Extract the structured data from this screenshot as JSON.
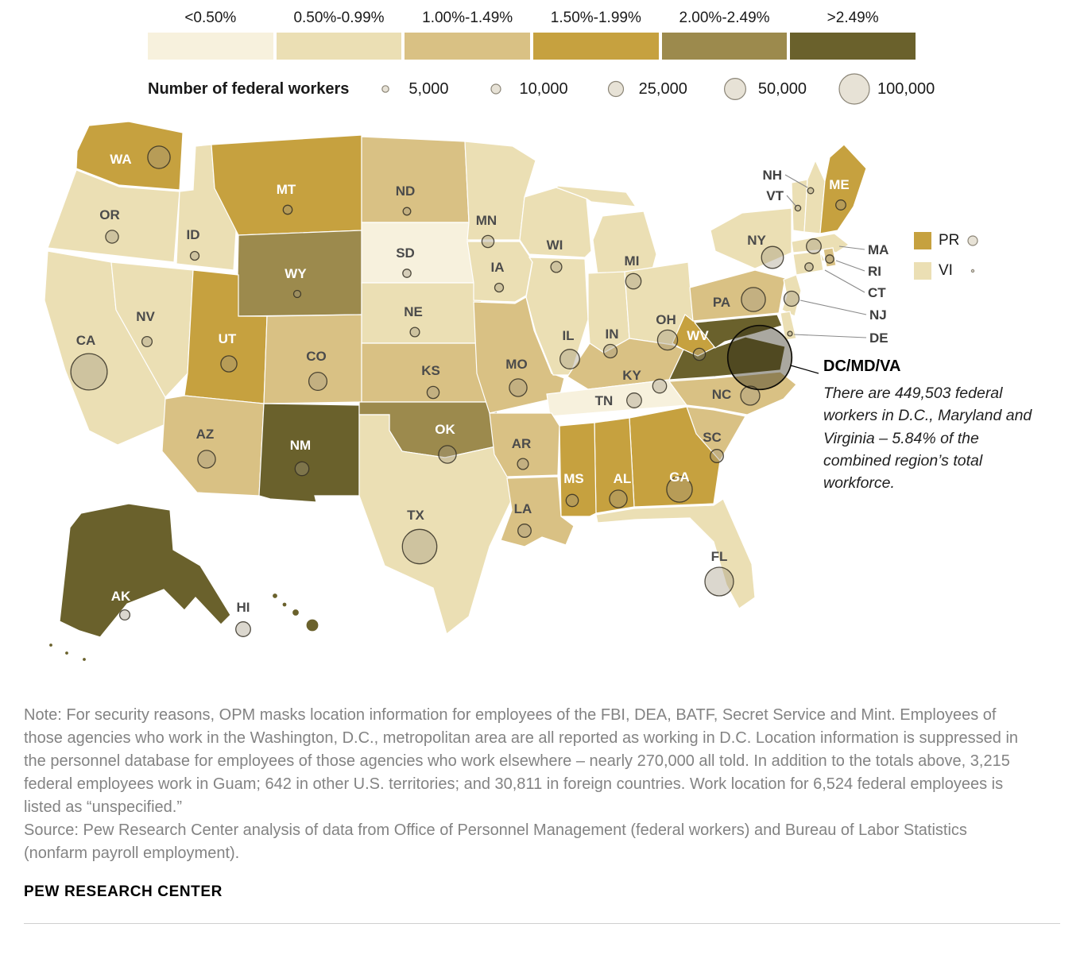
{
  "legend": {
    "bins": [
      {
        "label": "<0.50%",
        "color": "#f7f1dd"
      },
      {
        "label": "0.50%-0.99%",
        "color": "#ebdfb4"
      },
      {
        "label": "1.00%-1.49%",
        "color": "#d9c184"
      },
      {
        "label": "1.50%-1.99%",
        "color": "#c6a13f"
      },
      {
        "label": "2.00%-2.49%",
        "color": "#9c8a4d"
      },
      {
        "label": ">2.49%",
        "color": "#6a612c"
      }
    ],
    "size_title": "Number of federal workers",
    "sizes": [
      {
        "label": "5,000",
        "workers": 5000
      },
      {
        "label": "10,000",
        "workers": 10000
      },
      {
        "label": "25,000",
        "workers": 25000
      },
      {
        "label": "50,000",
        "workers": 50000
      },
      {
        "label": "100,000",
        "workers": 100000
      }
    ],
    "territories": [
      {
        "abbr": "PR",
        "bin": 3,
        "workers": 10000
      },
      {
        "abbr": "VI",
        "bin": 1,
        "workers": 700
      }
    ]
  },
  "map": {
    "external_labels": {
      "NH": "NH",
      "VT": "VT",
      "MA": "MA",
      "RI": "RI",
      "CT": "CT",
      "NJ": "NJ",
      "DE": "DE"
    }
  },
  "annotation": {
    "title": "DC/MD/VA",
    "workers": 449503,
    "body": "There are 449,503 federal workers in D.C., Maryland and Virginia – 5.84% of the combined region’s total workforce."
  },
  "states": [
    {
      "abbr": "WA",
      "bin": 3,
      "workers": 55000
    },
    {
      "abbr": "OR",
      "bin": 1,
      "workers": 18000
    },
    {
      "abbr": "CA",
      "bin": 1,
      "workers": 145000
    },
    {
      "abbr": "NV",
      "bin": 1,
      "workers": 11500
    },
    {
      "abbr": "ID",
      "bin": 1,
      "workers": 8500
    },
    {
      "abbr": "MT",
      "bin": 3,
      "workers": 9000
    },
    {
      "abbr": "WY",
      "bin": 4,
      "workers": 5500
    },
    {
      "abbr": "UT",
      "bin": 3,
      "workers": 28000
    },
    {
      "abbr": "CO",
      "bin": 2,
      "workers": 36000
    },
    {
      "abbr": "AZ",
      "bin": 2,
      "workers": 34000
    },
    {
      "abbr": "NM",
      "bin": 5,
      "workers": 21000
    },
    {
      "abbr": "ND",
      "bin": 2,
      "workers": 6500
    },
    {
      "abbr": "SD",
      "bin": 0,
      "workers": 7500
    },
    {
      "abbr": "NE",
      "bin": 1,
      "workers": 9500
    },
    {
      "abbr": "KS",
      "bin": 2,
      "workers": 16000
    },
    {
      "abbr": "OK",
      "bin": 4,
      "workers": 34000
    },
    {
      "abbr": "TX",
      "bin": 1,
      "workers": 130000
    },
    {
      "abbr": "MN",
      "bin": 1,
      "workers": 16000
    },
    {
      "abbr": "IA",
      "bin": 1,
      "workers": 8500
    },
    {
      "abbr": "MO",
      "bin": 2,
      "workers": 34000
    },
    {
      "abbr": "AR",
      "bin": 2,
      "workers": 13000
    },
    {
      "abbr": "LA",
      "bin": 2,
      "workers": 19000
    },
    {
      "abbr": "WI",
      "bin": 1,
      "workers": 13000
    },
    {
      "abbr": "IL",
      "bin": 1,
      "workers": 42000
    },
    {
      "abbr": "IN",
      "bin": 1,
      "workers": 20000
    },
    {
      "abbr": "MI",
      "bin": 1,
      "workers": 26000
    },
    {
      "abbr": "OH",
      "bin": 1,
      "workers": 44000
    },
    {
      "abbr": "KY",
      "bin": 2,
      "workers": 21000
    },
    {
      "abbr": "TN",
      "bin": 0,
      "workers": 24000
    },
    {
      "abbr": "MS",
      "bin": 3,
      "workers": 16500
    },
    {
      "abbr": "AL",
      "bin": 3,
      "workers": 34000
    },
    {
      "abbr": "GA",
      "bin": 3,
      "workers": 72000
    },
    {
      "abbr": "FL",
      "bin": 1,
      "workers": 90000
    },
    {
      "abbr": "SC",
      "bin": 2,
      "workers": 19000
    },
    {
      "abbr": "NC",
      "bin": 2,
      "workers": 40000
    },
    {
      "abbr": "VA",
      "bin": 5,
      "workers": null
    },
    {
      "abbr": "WV",
      "bin": 3,
      "workers": 16000
    },
    {
      "abbr": "MD",
      "bin": 5,
      "workers": null
    },
    {
      "abbr": "DE",
      "bin": 1,
      "workers": 2500
    },
    {
      "abbr": "PA",
      "bin": 2,
      "workers": 63000
    },
    {
      "abbr": "NJ",
      "bin": 1,
      "workers": 25000
    },
    {
      "abbr": "NY",
      "bin": 1,
      "workers": 53000
    },
    {
      "abbr": "CT",
      "bin": 1,
      "workers": 7500
    },
    {
      "abbr": "RI",
      "bin": 2,
      "workers": 7500
    },
    {
      "abbr": "MA",
      "bin": 1,
      "workers": 24000
    },
    {
      "abbr": "VT",
      "bin": 1,
      "workers": 3500
    },
    {
      "abbr": "NH",
      "bin": 1,
      "workers": 4000
    },
    {
      "abbr": "ME",
      "bin": 3,
      "workers": 11000
    },
    {
      "abbr": "AK",
      "bin": 5,
      "workers": 11500
    },
    {
      "abbr": "HI",
      "bin": 5,
      "workers": 24000
    }
  ],
  "footer": {
    "note": "Note: For security reasons, OPM masks location information for employees of the FBI, DEA, BATF, Secret Service and Mint. Employees of those agencies who work in the Washington, D.C., metropolitan area are all reported as working in D.C. Location information is suppressed in the personnel database for employees of those agencies who work elsewhere – nearly 270,000 all told. In addition to the totals above, 3,215 federal employees work in Guam; 642 in other U.S. territories; and 30,811 in foreign countries. Work location for 6,524 federal employees is listed as “unspecified.”",
    "source": "Source: Pew Research Center analysis of data from Office of Personnel Management (federal workers) and Bureau of Labor Statistics (nonfarm payroll employment).",
    "brand": "PEW RESEARCH CENTER"
  }
}
